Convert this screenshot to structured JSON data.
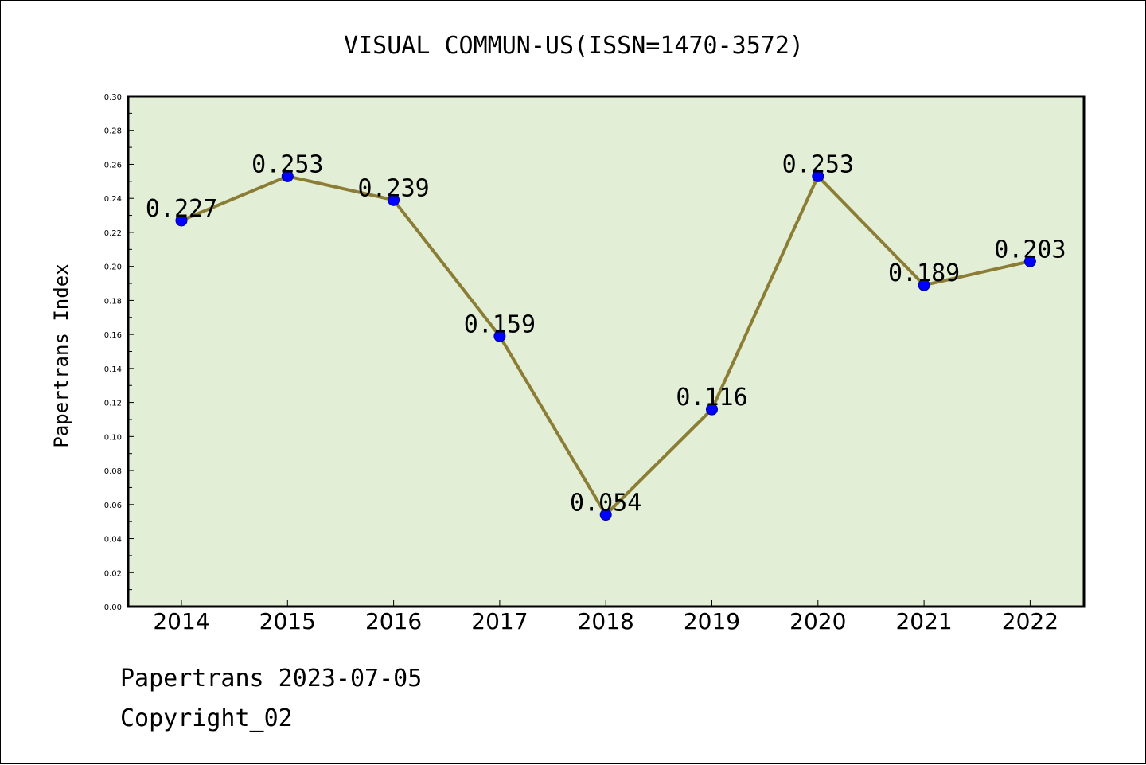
{
  "footer": {
    "line1": "Papertrans 2023-07-05",
    "line2": "Copyright_02"
  },
  "chart_data": {
    "type": "line",
    "title": "VISUAL COMMUN-US(ISSN=1470-3572)",
    "xlabel": "",
    "ylabel": "Papertrans Index",
    "categories": [
      "2014",
      "2015",
      "2016",
      "2017",
      "2018",
      "2019",
      "2020",
      "2021",
      "2022"
    ],
    "values": [
      0.227,
      0.253,
      0.239,
      0.159,
      0.054,
      0.116,
      0.253,
      0.189,
      0.203
    ],
    "data_labels": [
      "0.227",
      "0.253",
      "0.239",
      "0.159",
      "0.054",
      "0.116",
      "0.253",
      "0.189",
      "0.203"
    ],
    "ylim": [
      0.0,
      0.3
    ],
    "yticks": [
      "0.00",
      "0.02",
      "0.04",
      "0.06",
      "0.08",
      "0.10",
      "0.12",
      "0.14",
      "0.16",
      "0.18",
      "0.20",
      "0.22",
      "0.24",
      "0.26",
      "0.28",
      "0.30"
    ],
    "grid": false,
    "colors": {
      "plot_background": "#e2efd6",
      "line": "#8b7d35",
      "marker": "#0000ff",
      "marker_edge": "#00008b",
      "axes": "#000000"
    }
  }
}
